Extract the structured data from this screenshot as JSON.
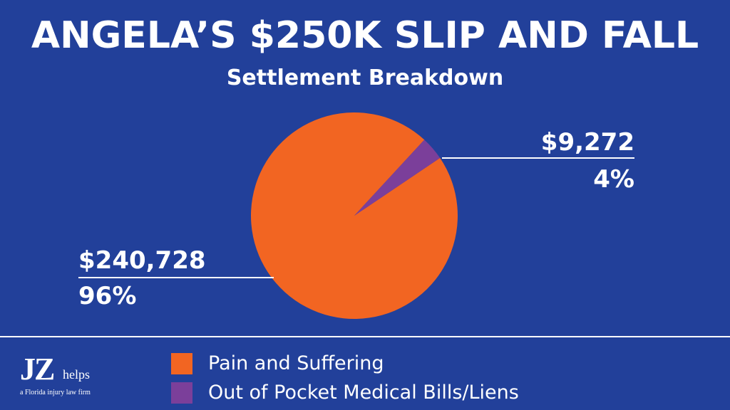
{
  "colors": {
    "background": "#22409a",
    "pain_and_suffering": "#f26522",
    "medical_bills": "#7b3f9a",
    "text": "#ffffff"
  },
  "chart_data": {
    "type": "pie",
    "title": "ANGELA’S $250K SLIP AND FALL",
    "subtitle": "Settlement Breakdown",
    "series": [
      {
        "name": "Pain and Suffering",
        "value": 240728,
        "value_label": "$240,728",
        "percent_label": "96%",
        "color": "#f26522"
      },
      {
        "name": "Out of Pocket Medical Bills/Liens",
        "value": 9272,
        "value_label": "$9,272",
        "percent_label": "4%",
        "color": "#7b3f9a"
      }
    ],
    "legend_placement": "bottom"
  },
  "footer": {
    "logo_jz": "JZ",
    "logo_helps": "helps",
    "logo_tagline": "a Florida injury law firm"
  }
}
